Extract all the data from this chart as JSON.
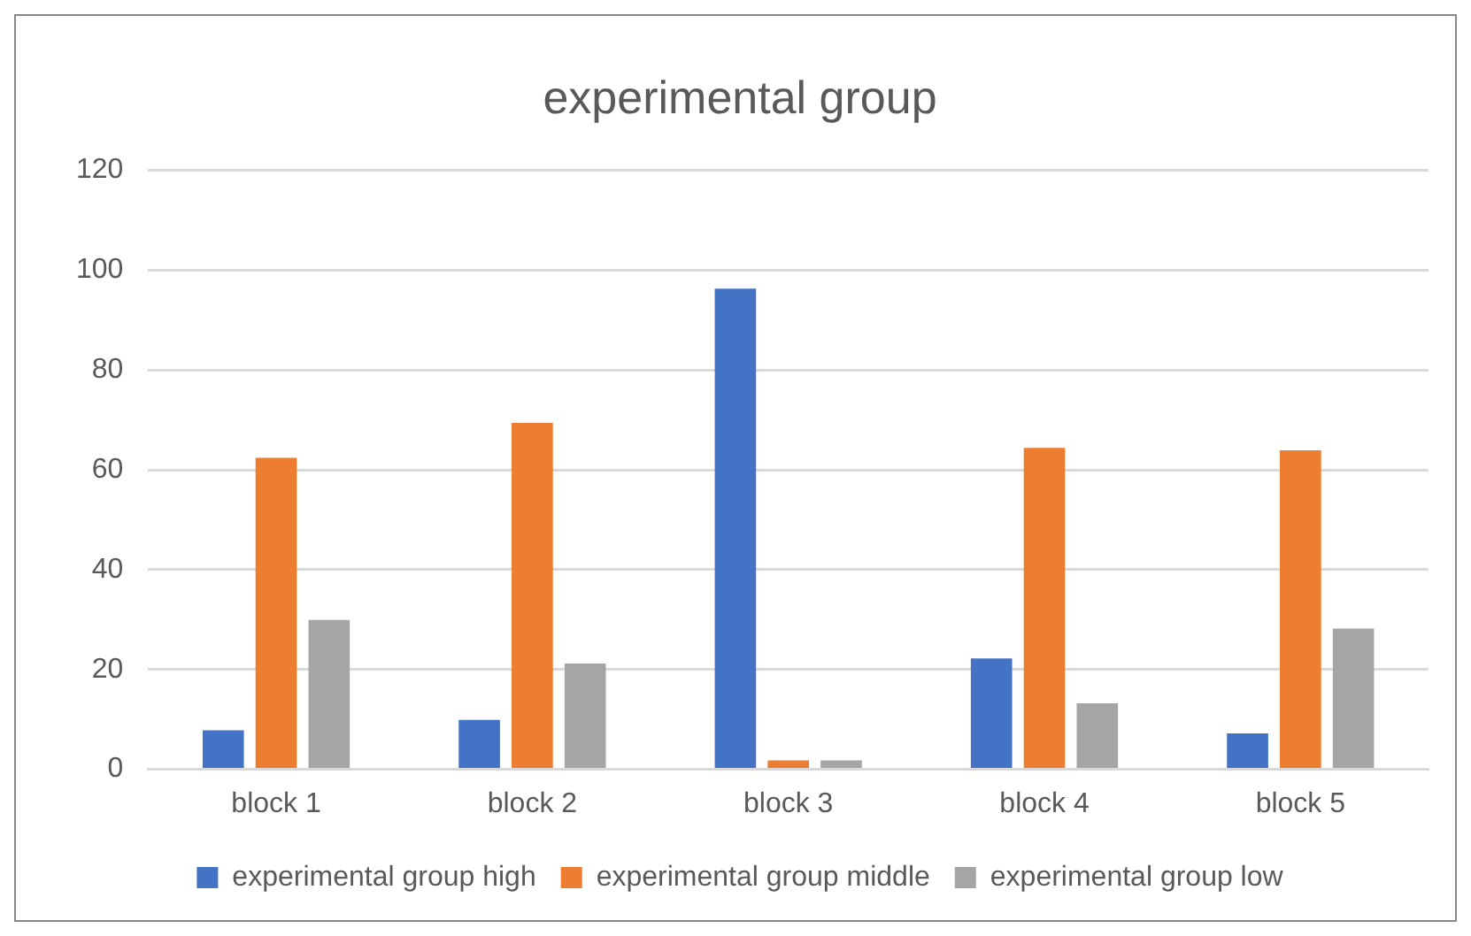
{
  "chart_data": {
    "type": "bar",
    "title": "experimental group",
    "categories": [
      "block 1",
      "block 2",
      "block 3",
      "block 4",
      "block 5"
    ],
    "series": [
      {
        "name": "experimental group high",
        "color": "#4472c4",
        "values": [
          7.8,
          9.9,
          96.3,
          22.2,
          7.2
        ]
      },
      {
        "name": "experimental group middle",
        "color": "#ed7d31",
        "values": [
          62.4,
          69.4,
          1.8,
          64.4,
          63.9
        ]
      },
      {
        "name": "experimental group low",
        "color": "#a5a5a5",
        "values": [
          29.9,
          21.2,
          1.8,
          13.2,
          28.2
        ]
      }
    ],
    "ylim": [
      0,
      120
    ],
    "yticks": [
      0,
      20,
      40,
      60,
      80,
      100,
      120
    ],
    "grid": "y",
    "legend": "bottom"
  }
}
